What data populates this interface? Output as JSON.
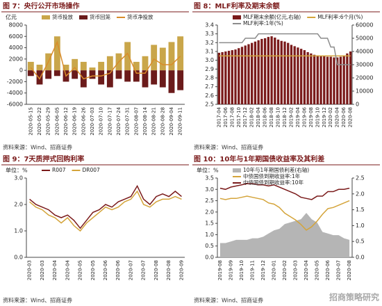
{
  "watermark": "招商策略研究",
  "chart_data": [
    {
      "type": "bar",
      "title": "图 7：央行公开市场操作",
      "source": "资料来源：Wind、招商证券",
      "unit": "亿元",
      "categories": [
        "2020-05-15",
        "2020-05-22",
        "2020-05-29",
        "2020-06-05",
        "2020-06-12",
        "2020-06-19",
        "2020-06-26",
        "2020-07-03",
        "2020-07-10",
        "2020-07-17",
        "2020-07-24",
        "2020-07-31",
        "2020-08-07",
        "2020-08-14",
        "2020-08-21",
        "2020-08-28",
        "2020-09-04",
        "2020-09-11"
      ],
      "series": [
        {
          "name": "货币投放",
          "type": "bar",
          "color": "#c9a64a",
          "values": [
            1500,
            1000,
            3000,
            6000,
            1000,
            2000,
            1500,
            500,
            1500,
            2500,
            3000,
            5000,
            1500,
            2500,
            4500,
            4000,
            5000,
            6000
          ]
        },
        {
          "name": "货币回笼",
          "type": "bar",
          "color": "#6b1b1b",
          "values": [
            -1000,
            -2500,
            -1500,
            -1000,
            -2000,
            -1500,
            -3000,
            -1500,
            -2500,
            -3000,
            -1500,
            -2000,
            -2000,
            -3000,
            -2500,
            -3000,
            -4000,
            -3500
          ]
        },
        {
          "name": "货币净投放",
          "type": "line",
          "color": "#d98c2b",
          "values": [
            500,
            -1500,
            1500,
            5000,
            -1000,
            500,
            -1500,
            -1000,
            -1000,
            -500,
            1500,
            3000,
            -500,
            -500,
            2000,
            1000,
            1000,
            2500
          ]
        }
      ],
      "ylim": [
        -6000,
        8000
      ],
      "yticks": [
        -6000,
        -4000,
        -2000,
        0,
        2000,
        4000,
        6000,
        8000
      ]
    },
    {
      "type": "bar",
      "title": "图 8：MLF利率及期末余额",
      "source": "资料来源：Wind、招商证券",
      "categories": [
        "2017-04",
        null,
        "2017-06",
        null,
        "2017-08",
        null,
        "2017-10",
        null,
        "2017-12",
        null,
        "2018-02",
        null,
        "2018-04",
        null,
        "2018-06",
        null,
        "2018-08",
        null,
        "2018-10",
        null,
        "2018-12",
        null,
        "2019-02",
        null,
        "2019-04",
        null,
        "2019-06",
        null,
        "2019-08",
        null,
        "2019-10",
        null,
        "2019-12",
        null,
        "2020-02",
        null,
        "2020-04",
        null,
        "2020-06",
        null,
        "2020-08"
      ],
      "series": [
        {
          "name": "MLF期末余额(亿元,右轴)",
          "type": "bar",
          "axis": "y2",
          "color": "#7a1a1a",
          "values": [
            39000,
            39500,
            40000,
            40500,
            41000,
            41500,
            42500,
            43500,
            44500,
            45500,
            46500,
            47500,
            48500,
            49500,
            50000,
            51000,
            51500,
            50500,
            49000,
            48000,
            47500,
            46500,
            45000,
            44000,
            43000,
            42000,
            41000,
            39500,
            38500,
            37500,
            37000,
            36500,
            36500,
            36000,
            36000,
            35500,
            35500,
            36000,
            37000,
            38500,
            40000
          ]
        },
        {
          "name": "MLF利率:6个月(%)",
          "type": "line",
          "color": "#d4a43a",
          "values": [
            3.05,
            3.05,
            3.05,
            3.05,
            3.05,
            3.05,
            3.05,
            3.05,
            3.05,
            3.05,
            3.05,
            3.05,
            3.05,
            3.05,
            3.05,
            3.05,
            3.05,
            3.05,
            3.05,
            3.05,
            3.05,
            3.05,
            3.05,
            3.05,
            3.05,
            3.05,
            3.05,
            3.05,
            3.05,
            3.05,
            3.05,
            3.05,
            3.05,
            3.05,
            3.05,
            3.05,
            3.05,
            3.05,
            3.05,
            3.05,
            3.05
          ]
        },
        {
          "name": "MLF利率:1年(%)",
          "type": "line",
          "color": "#8c8c8c",
          "values": [
            3.2,
            3.2,
            3.2,
            3.2,
            3.2,
            3.2,
            3.2,
            3.2,
            3.25,
            3.25,
            3.25,
            3.25,
            3.3,
            3.3,
            3.3,
            3.3,
            3.3,
            3.3,
            3.3,
            3.3,
            3.3,
            3.3,
            3.3,
            3.3,
            3.3,
            3.3,
            3.3,
            3.3,
            3.3,
            3.3,
            3.3,
            3.25,
            3.25,
            3.25,
            3.15,
            3.15,
            2.95,
            2.95,
            2.95,
            2.95,
            2.95
          ]
        }
      ],
      "ylim": [
        2.5,
        3.4
      ],
      "yticks": [
        2.5,
        2.6,
        2.7,
        2.8,
        2.9,
        {
          "value": 3.0,
          "label": "3.0"
        },
        3.1,
        3.2,
        3.3,
        3.4
      ],
      "y2lim": [
        0,
        60000
      ],
      "y2ticks": [
        0,
        10000,
        20000,
        30000,
        40000,
        50000,
        60000
      ]
    },
    {
      "type": "line",
      "title": "图 9：7天质押式回购利率",
      "source": "资料来源：Wind、招商证券",
      "unit": "单位：%",
      "categories": [
        "2020-03",
        null,
        "2020-03",
        null,
        "2020-04",
        null,
        "2020-04",
        null,
        "2020-05",
        null,
        "2020-05",
        null,
        "2020-06",
        null,
        "2020-06",
        null,
        "2020-07",
        null,
        "2020-07",
        null,
        "2020-08",
        null,
        "2020-08",
        null,
        "2020-09"
      ],
      "series": [
        {
          "name": "R007",
          "type": "line",
          "color": "#7a1a1a",
          "values": [
            2.2,
            2.0,
            1.9,
            1.8,
            1.6,
            1.5,
            1.6,
            1.4,
            1.1,
            1.4,
            1.7,
            1.8,
            2.0,
            1.9,
            2.1,
            2.2,
            2.3,
            2.7,
            2.2,
            2.0,
            2.3,
            2.4,
            2.3,
            2.5,
            2.3
          ]
        },
        {
          "name": "DR007",
          "type": "line",
          "color": "#d4a43a",
          "values": [
            2.1,
            1.9,
            1.8,
            1.6,
            1.5,
            1.3,
            1.5,
            1.2,
            1.0,
            1.3,
            1.5,
            1.7,
            1.9,
            1.8,
            1.9,
            2.1,
            2.2,
            2.5,
            2.0,
            1.9,
            2.1,
            2.2,
            2.2,
            2.3,
            2.2
          ]
        }
      ],
      "ylim": [
        0,
        3
      ],
      "yticks": [
        {
          "value": 0,
          "label": "0.0"
        },
        {
          "value": 1,
          "label": "1.0"
        },
        {
          "value": 2,
          "label": "2.0"
        },
        {
          "value": 3,
          "label": "3.0"
        }
      ]
    },
    {
      "type": "line",
      "title": "图 10：10年与1年期国债收益率及其利差",
      "source": "资料来源：Wind、招商证券",
      "unit": "单位：%",
      "categories": [
        "2019-08",
        null,
        "2019-09",
        null,
        "2019-10",
        null,
        "2019-11",
        null,
        "2019-12",
        null,
        "2020-01",
        null,
        "2020-02",
        null,
        "2020-03",
        null,
        "2020-04",
        null,
        "2020-05",
        null,
        "2020-06",
        null,
        "2020-07",
        null,
        "2020-08"
      ],
      "series": [
        {
          "name": "10年与1年期国债利差(右轴)",
          "type": "area",
          "axis": "y2",
          "color": "#b5b5b5",
          "values": [
            0.45,
            0.45,
            0.5,
            0.55,
            0.55,
            0.55,
            0.6,
            0.6,
            0.65,
            0.75,
            0.85,
            0.9,
            1.05,
            1.1,
            1.15,
            1.2,
            1.4,
            1.2,
            1.1,
            0.8,
            0.75,
            0.7,
            0.7,
            0.6,
            0.55
          ]
        },
        {
          "name": "中债国债到期收益率:1年",
          "type": "line",
          "color": "#d4a43a",
          "values": [
            2.6,
            2.55,
            2.6,
            2.6,
            2.65,
            2.7,
            2.65,
            2.6,
            2.55,
            2.4,
            2.35,
            2.2,
            1.95,
            1.8,
            1.65,
            1.45,
            1.2,
            1.35,
            1.6,
            1.9,
            2.15,
            2.2,
            2.3,
            2.4,
            2.5
          ]
        },
        {
          "name": "中债国债到期收益率:10年",
          "type": "line",
          "color": "#7a1a1a",
          "values": [
            3.05,
            3.0,
            3.1,
            3.15,
            3.2,
            3.25,
            3.25,
            3.2,
            3.2,
            3.15,
            3.2,
            3.1,
            3.0,
            2.9,
            2.8,
            2.65,
            2.6,
            2.55,
            2.7,
            2.7,
            2.9,
            2.9,
            3.0,
            3.0,
            3.05
          ]
        }
      ],
      "ylim": [
        0,
        3.5
      ],
      "yticks": [
        {
          "value": 0,
          "label": "0.0"
        },
        0.5,
        {
          "value": 1,
          "label": "1.0"
        },
        1.5,
        {
          "value": 2,
          "label": "2.0"
        },
        2.5,
        {
          "value": 3,
          "label": "3.0"
        },
        3.5
      ],
      "y2lim": [
        0,
        2.5
      ],
      "y2ticks": [
        {
          "value": 0,
          "label": "0.0"
        },
        0.5,
        {
          "value": 1,
          "label": "1.0"
        },
        1.5,
        {
          "value": 2,
          "label": "2.0"
        },
        2.5
      ]
    }
  ]
}
